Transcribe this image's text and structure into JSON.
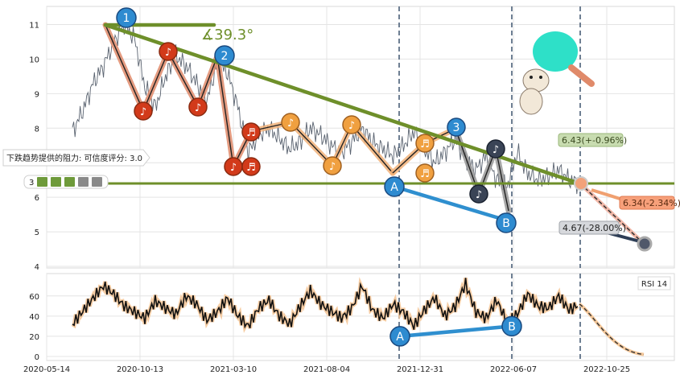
{
  "chart_data": [
    {
      "type": "line",
      "panel": "price",
      "ylim": [
        4,
        11.5
      ],
      "y_ticks": [
        4,
        5,
        6,
        7,
        8,
        9,
        10,
        11
      ],
      "x_ticks": [
        "2020-05-14",
        "2020-10-13",
        "2021-03-10",
        "2021-08-04",
        "2021-12-31",
        "2022-06-07",
        "2022-10-25"
      ],
      "grid": true,
      "series": [
        {
          "values": [
            7.9,
            8.5,
            9.3,
            9.8,
            10.5,
            11.0,
            10.6,
            9.2,
            8.6,
            9.5,
            10.1,
            9.8,
            9.3,
            8.8,
            9.9,
            9.6,
            8.6,
            7.3,
            7.8,
            8.0,
            7.7,
            7.4,
            7.6,
            8.0,
            7.8,
            7.5,
            7.3,
            7.6,
            8.0,
            7.6,
            7.4,
            7.2,
            7.5,
            7.9,
            7.4,
            7.0,
            7.3,
            7.7,
            7.1,
            6.8,
            7.2,
            6.5,
            6.3,
            7.3,
            6.7,
            6.5,
            6.6,
            6.8,
            6.5,
            6.4
          ]
        }
      ],
      "trendlines": [
        {
          "name": "resistance",
          "from": [
            "2020-09-08",
            11.0
          ],
          "to": [
            "2022-09-13",
            6.5
          ]
        },
        {
          "name": "support",
          "value": 6.4
        },
        {
          "name": "A-B",
          "from": [
            "2021-12-03",
            6.7
          ],
          "to": [
            "2022-06-03",
            5.6
          ]
        }
      ],
      "vertical_markers": [
        "2021-12-03",
        "2022-06-03",
        "2022-09-13"
      ],
      "forecast": [
        {
          "label": "6.43(+-0.96%)",
          "value": 6.43
        },
        {
          "label": "6.34(-2.34%)",
          "value": 6.34
        },
        {
          "label": "4.67(-28.00%)",
          "value": 4.67
        }
      ],
      "annotations": {
        "angle": "∡39.3°",
        "resistance_text": "下跌趋势提供的阻力: 可信度评分: 3.0",
        "rating_prefix": "3",
        "points": [
          "1",
          "2",
          "3",
          "A",
          "B"
        ]
      }
    },
    {
      "type": "line",
      "panel": "rsi",
      "legend": "RSI 14",
      "ylim": [
        0,
        75
      ],
      "y_ticks": [
        0,
        20,
        40,
        60
      ],
      "series": [
        {
          "values": [
            32,
            45,
            58,
            70,
            62,
            50,
            44,
            38,
            55,
            48,
            42,
            60,
            52,
            36,
            44,
            58,
            40,
            30,
            48,
            56,
            40,
            32,
            50,
            65,
            52,
            45,
            38,
            48,
            70,
            46,
            38,
            52,
            44,
            30,
            46,
            58,
            40,
            50,
            72,
            44,
            38,
            56,
            34,
            42,
            62,
            50,
            48,
            60,
            46,
            52
          ]
        }
      ],
      "divergence": {
        "from": [
          "A",
          20
        ],
        "to": [
          "B",
          30
        ]
      },
      "forecast_end": 2
    }
  ]
}
